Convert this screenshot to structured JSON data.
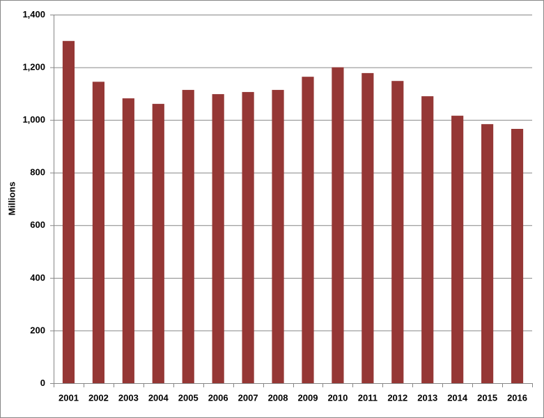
{
  "chart_data": {
    "type": "bar",
    "y_label": "Millions",
    "categories": [
      "2001",
      "2002",
      "2003",
      "2004",
      "2005",
      "2006",
      "2007",
      "2008",
      "2009",
      "2010",
      "2011",
      "2012",
      "2013",
      "2014",
      "2015",
      "2016"
    ],
    "values": [
      1300,
      1145,
      1082,
      1061,
      1114,
      1098,
      1106,
      1114,
      1164,
      1200,
      1178,
      1148,
      1090,
      1016,
      984,
      966
    ],
    "color": "#953735",
    "ylim": [
      0,
      1400
    ],
    "yticks": [
      0,
      200,
      400,
      600,
      800,
      {
        "value": 1000,
        "label": "1,000"
      },
      {
        "value": 1200,
        "label": "1,200"
      },
      {
        "value": 1400,
        "label": "1,400"
      }
    ],
    "grid": true
  }
}
